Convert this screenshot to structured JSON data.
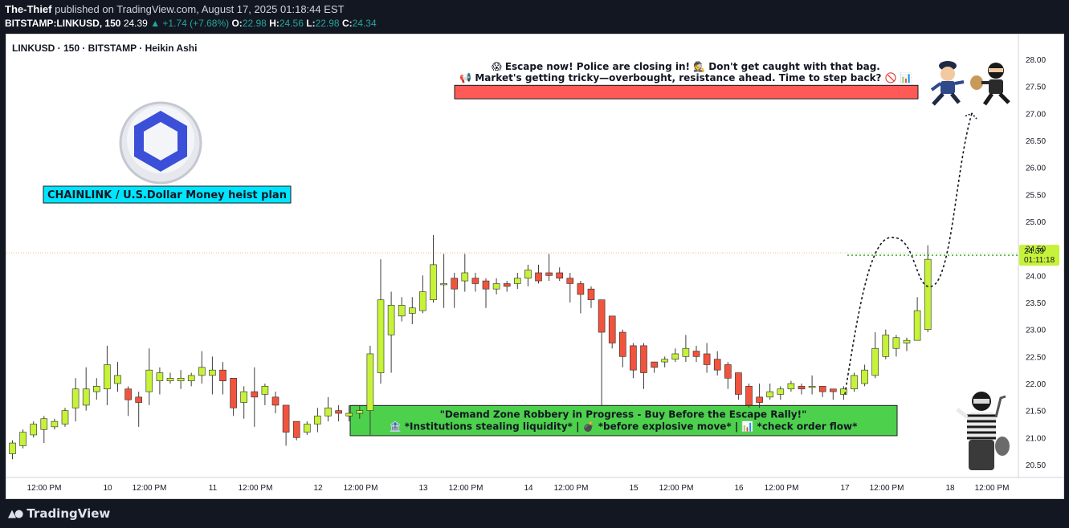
{
  "header": {
    "publisher": "The-Thief",
    "published_text": " published on TradingView.com, August 17, 2025 01:18:44 EST",
    "symbol": "BITSTAMP:LINKUSD, 150",
    "last": "24.39",
    "change": "▲ +1.74 (+7.68%)",
    "o_label": "O:",
    "o_val": "22.98",
    "h_label": "H:",
    "h_val": "24.56",
    "l_label": "L:",
    "l_val": "22.98",
    "c_label": "C:",
    "c_val": "24.34"
  },
  "chart_title": "LINKUSD · 150 · BITSTAMP · Heikin Ashi",
  "annotations": {
    "heist_label": "CHAINLINK / U.S.Dollar Money heist plan",
    "escape_line1": "😱 Escape now! Police are closing in! 🕵️ Don't get caught with that bag.",
    "escape_line2": "📢 Market's getting tricky—overbought, resistance ahead. Time to step back? 🚫 📊",
    "demand_line1": "\"Demand Zone Robbery in Progress - Buy Before the Escape Rally!\"",
    "demand_line2": "🏦 *Institutions stealing liquidity* | 💣 *before explosive move* | 📊 *check order flow*"
  },
  "price_label": {
    "value": "24.39",
    "countdown": "01:11:18"
  },
  "footer": {
    "brand": "TradingView"
  },
  "colors": {
    "up": "#c6f23a",
    "down": "#f2533d",
    "wick": "#3d3d3d",
    "demand_box": "#4dd14d",
    "resistance_box": "#ff5a57",
    "label_bg": "#00e5ff",
    "price_tag": "#c6f23a"
  },
  "chart_data": {
    "type": "candlestick",
    "style": "Heikin Ashi",
    "y_ticks": [
      28.0,
      27.5,
      27.0,
      26.5,
      26.0,
      25.5,
      25.0,
      24.5,
      24.0,
      23.5,
      23.0,
      22.5,
      22.0,
      21.5,
      21.0,
      20.5
    ],
    "ylim": [
      20.25,
      28.25
    ],
    "x_tick_labels": [
      "12:00 PM",
      "10",
      "12:00 PM",
      "11",
      "12:00 PM",
      "12",
      "12:00 PM",
      "13",
      "12:00 PM",
      "14",
      "12:00 PM",
      "15",
      "12:00 PM",
      "16",
      "12:00 PM",
      "17",
      "12:00 PM",
      "18",
      "12:00 PM"
    ],
    "candles": [
      [
        20.7,
        20.9,
        20.6,
        20.95
      ],
      [
        20.85,
        21.1,
        20.8,
        21.15
      ],
      [
        21.05,
        21.25,
        21.0,
        21.3
      ],
      [
        21.15,
        21.35,
        20.9,
        21.4
      ],
      [
        21.2,
        21.3,
        21.15,
        21.35
      ],
      [
        21.25,
        21.5,
        21.2,
        21.55
      ],
      [
        21.55,
        21.9,
        21.3,
        22.1
      ],
      [
        21.6,
        21.9,
        21.5,
        22.3
      ],
      [
        21.85,
        21.95,
        21.7,
        22.1
      ],
      [
        21.9,
        22.35,
        21.6,
        22.7
      ],
      [
        22.0,
        22.15,
        21.85,
        22.4
      ],
      [
        21.9,
        21.7,
        21.4,
        21.95
      ],
      [
        21.75,
        21.65,
        21.2,
        21.85
      ],
      [
        21.85,
        22.25,
        21.6,
        22.65
      ],
      [
        22.05,
        22.2,
        21.8,
        22.3
      ],
      [
        22.05,
        22.1,
        22.0,
        22.2
      ],
      [
        22.05,
        22.1,
        21.9,
        22.25
      ],
      [
        22.05,
        22.15,
        21.95,
        22.2
      ],
      [
        22.15,
        22.3,
        22.0,
        22.6
      ],
      [
        22.15,
        22.25,
        21.8,
        22.5
      ],
      [
        22.25,
        22.05,
        21.8,
        22.4
      ],
      [
        22.1,
        21.55,
        21.4,
        22.1
      ],
      [
        21.65,
        21.85,
        21.35,
        21.95
      ],
      [
        21.85,
        21.75,
        21.2,
        22.3
      ],
      [
        21.8,
        21.95,
        21.6,
        22.0
      ],
      [
        21.75,
        21.6,
        21.45,
        21.85
      ],
      [
        21.6,
        21.1,
        20.85,
        21.6
      ],
      [
        21.3,
        21.0,
        20.95,
        21.3
      ],
      [
        21.1,
        21.25,
        21.05,
        21.3
      ],
      [
        21.25,
        21.4,
        21.1,
        21.55
      ],
      [
        21.4,
        21.55,
        21.3,
        21.75
      ],
      [
        21.5,
        21.45,
        21.3,
        21.6
      ],
      [
        21.4,
        21.45,
        21.3,
        21.6
      ],
      [
        21.45,
        21.5,
        21.35,
        21.6
      ],
      [
        21.5,
        22.55,
        21.05,
        22.7
      ],
      [
        22.2,
        23.55,
        22.0,
        24.3
      ],
      [
        22.9,
        23.45,
        22.2,
        23.7
      ],
      [
        23.25,
        23.45,
        23.15,
        23.6
      ],
      [
        23.3,
        23.4,
        23.1,
        23.6
      ],
      [
        23.35,
        23.7,
        23.3,
        24.0
      ],
      [
        23.55,
        24.2,
        23.5,
        24.75
      ],
      [
        23.85,
        23.85,
        23.4,
        24.4
      ],
      [
        23.95,
        23.75,
        23.4,
        24.05
      ],
      [
        23.9,
        24.05,
        23.7,
        24.4
      ],
      [
        23.95,
        23.85,
        23.7,
        24.05
      ],
      [
        23.9,
        23.75,
        23.4,
        23.95
      ],
      [
        23.75,
        23.85,
        23.65,
        23.95
      ],
      [
        23.85,
        23.8,
        23.7,
        23.9
      ],
      [
        23.85,
        23.95,
        23.75,
        24.05
      ],
      [
        23.95,
        24.1,
        23.8,
        24.2
      ],
      [
        24.05,
        23.9,
        23.85,
        24.2
      ],
      [
        24.05,
        24.0,
        23.9,
        24.4
      ],
      [
        24.05,
        23.95,
        23.9,
        24.15
      ],
      [
        23.95,
        23.85,
        23.5,
        24.05
      ],
      [
        23.85,
        23.65,
        23.3,
        23.9
      ],
      [
        23.75,
        23.55,
        23.4,
        23.8
      ],
      [
        23.55,
        22.95,
        21.6,
        23.55
      ],
      [
        23.25,
        22.75,
        22.65,
        23.25
      ],
      [
        22.95,
        22.5,
        22.3,
        23.0
      ],
      [
        22.7,
        22.25,
        22.1,
        22.75
      ],
      [
        22.7,
        22.2,
        21.9,
        22.75
      ],
      [
        22.4,
        22.3,
        22.2,
        22.4
      ],
      [
        22.4,
        22.45,
        22.3,
        22.5
      ],
      [
        22.45,
        22.55,
        22.4,
        22.65
      ],
      [
        22.5,
        22.65,
        22.4,
        22.9
      ],
      [
        22.6,
        22.5,
        22.4,
        22.7
      ],
      [
        22.55,
        22.35,
        22.2,
        22.75
      ],
      [
        22.45,
        22.25,
        22.15,
        22.6
      ],
      [
        22.35,
        22.1,
        21.9,
        22.4
      ],
      [
        22.2,
        21.8,
        21.7,
        22.2
      ],
      [
        21.95,
        21.6,
        21.55,
        22.0
      ],
      [
        21.75,
        21.65,
        21.55,
        22.0
      ],
      [
        21.75,
        21.85,
        21.7,
        22.0
      ],
      [
        21.8,
        21.9,
        21.7,
        21.95
      ],
      [
        21.9,
        22.0,
        21.85,
        22.05
      ],
      [
        21.95,
        21.9,
        21.8,
        22.0
      ],
      [
        21.95,
        21.95,
        21.8,
        22.15
      ],
      [
        21.95,
        21.85,
        21.75,
        21.95
      ],
      [
        21.9,
        21.85,
        21.7,
        21.9
      ],
      [
        21.8,
        21.9,
        21.7,
        21.95
      ],
      [
        21.9,
        22.15,
        21.85,
        22.2
      ],
      [
        22.0,
        22.25,
        21.95,
        22.35
      ],
      [
        22.15,
        22.65,
        22.1,
        22.95
      ],
      [
        22.5,
        22.9,
        22.45,
        23.0
      ],
      [
        22.65,
        22.85,
        22.5,
        22.9
      ],
      [
        22.75,
        22.8,
        22.6,
        22.85
      ],
      [
        22.8,
        23.35,
        22.8,
        23.6
      ],
      [
        23.0,
        24.3,
        22.95,
        24.56
      ]
    ],
    "current_price": 24.39,
    "projection_path": [
      [
        24.0,
        21.8
      ],
      [
        24.6,
        24.7
      ],
      [
        25.2,
        23.8
      ],
      [
        26.0,
        27.0
      ]
    ],
    "zones": {
      "demand": [
        21.05,
        21.55
      ],
      "resistance": [
        27.27,
        27.52
      ]
    }
  }
}
